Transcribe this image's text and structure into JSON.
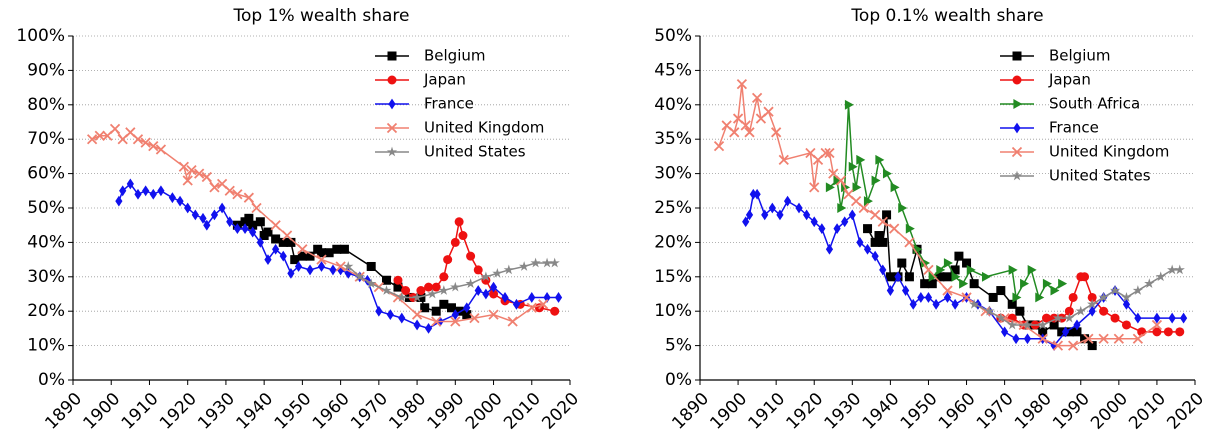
{
  "chart_data": [
    {
      "type": "line",
      "title": "Top 1% wealth share",
      "legend": "upper right",
      "grid": true,
      "xlim": [
        1890,
        2020
      ],
      "xticks": [
        1890,
        1900,
        1910,
        1920,
        1930,
        1940,
        1950,
        1960,
        1970,
        1980,
        1990,
        2000,
        2010,
        2020
      ],
      "ylim": [
        0,
        100
      ],
      "yticks": [
        {
          "value": 0,
          "label": "0%"
        },
        {
          "value": 10,
          "label": "10%"
        },
        {
          "value": 20,
          "label": "20%"
        },
        {
          "value": 30,
          "label": "30%"
        },
        {
          "value": 40,
          "label": "40%"
        },
        {
          "value": 50,
          "label": "50%"
        },
        {
          "value": 60,
          "label": "60%"
        },
        {
          "value": 70,
          "label": "70%"
        },
        {
          "value": 80,
          "label": "80%"
        },
        {
          "value": 90,
          "label": "90%"
        },
        {
          "value": 100,
          "label": "100%"
        }
      ],
      "series": [
        {
          "name": "Belgium",
          "color": "#000000",
          "marker": "square",
          "x": [
            1933,
            1935,
            1936,
            1937,
            1939,
            1940,
            1941,
            1943,
            1945,
            1947,
            1948,
            1950,
            1952,
            1954,
            1955,
            1957,
            1959,
            1961,
            1968,
            1972,
            1975,
            1978,
            1981,
            1982,
            1985,
            1987,
            1989,
            1991,
            1993
          ],
          "values": [
            45,
            46,
            47,
            45,
            46,
            42,
            43,
            41,
            40,
            40,
            35,
            36,
            36,
            38,
            37,
            37,
            38,
            38,
            33,
            29,
            27,
            24,
            24,
            21,
            20,
            22,
            21,
            20,
            19
          ]
        },
        {
          "name": "Japan",
          "color": "#ee1111",
          "marker": "circle",
          "x": [
            1975,
            1977,
            1979,
            1981,
            1983,
            1985,
            1987,
            1988,
            1990,
            1991,
            1992,
            1994,
            1996,
            1998,
            2000,
            2003,
            2007,
            2012,
            2016
          ],
          "values": [
            29,
            26,
            24,
            26,
            27,
            27,
            30,
            35,
            40,
            46,
            42,
            36,
            32,
            29,
            25,
            23,
            22,
            21,
            20
          ]
        },
        {
          "name": "France",
          "color": "#1111ee",
          "marker": "diamond",
          "x": [
            1902,
            1903,
            1905,
            1907,
            1909,
            1911,
            1913,
            1916,
            1918,
            1920,
            1922,
            1924,
            1925,
            1927,
            1929,
            1931,
            1933,
            1935,
            1937,
            1939,
            1941,
            1943,
            1945,
            1947,
            1949,
            1952,
            1955,
            1958,
            1960,
            1962,
            1965,
            1967,
            1970,
            1973,
            1976,
            1980,
            1983,
            1986,
            1990,
            1993,
            1996,
            1998,
            2000,
            2003,
            2006,
            2010,
            2014,
            2017
          ],
          "values": [
            52,
            55,
            57,
            54,
            55,
            54,
            55,
            53,
            52,
            50,
            48,
            47,
            45,
            48,
            50,
            46,
            44,
            44,
            43,
            40,
            35,
            38,
            36,
            31,
            33,
            32,
            33,
            32,
            32,
            31,
            30,
            29,
            20,
            19,
            18,
            16,
            15,
            17,
            19,
            21,
            26,
            25,
            27,
            24,
            22,
            24,
            24,
            24
          ]
        },
        {
          "name": "United Kingdom",
          "color": "#f08070",
          "marker": "x",
          "x": [
            1895,
            1897,
            1899,
            1901,
            1903,
            1905,
            1907,
            1909,
            1911,
            1913,
            1919,
            1920,
            1921,
            1923,
            1925,
            1927,
            1929,
            1931,
            1933,
            1936,
            1938,
            1943,
            1946,
            1950,
            1955,
            1960,
            1965,
            1970,
            1975,
            1980,
            1985,
            1990,
            1995,
            2000,
            2005,
            2010,
            2013
          ],
          "values": [
            70,
            71,
            71,
            73,
            70,
            72,
            70,
            69,
            68,
            67,
            62,
            58,
            61,
            60,
            59,
            56,
            57,
            55,
            54,
            53,
            50,
            45,
            42,
            38,
            35,
            33,
            30,
            27,
            24,
            19,
            17,
            17,
            18,
            19,
            17,
            21,
            22
          ]
        },
        {
          "name": "United States",
          "color": "#888888",
          "marker": "star",
          "x": [
            1962,
            1965,
            1968,
            1972,
            1976,
            1980,
            1984,
            1987,
            1990,
            1994,
            1998,
            2001,
            2004,
            2008,
            2011,
            2014,
            2016
          ],
          "values": [
            33,
            30,
            28,
            26,
            24,
            24,
            25,
            26,
            27,
            28,
            30,
            31,
            32,
            33,
            34,
            34,
            34
          ]
        }
      ]
    },
    {
      "type": "line",
      "title": "Top 0.1% wealth share",
      "legend": "upper right",
      "grid": true,
      "xlim": [
        1890,
        2020
      ],
      "xticks": [
        1890,
        1900,
        1910,
        1920,
        1930,
        1940,
        1950,
        1960,
        1970,
        1980,
        1990,
        2000,
        2010,
        2020
      ],
      "ylim": [
        0,
        50
      ],
      "yticks": [
        {
          "value": 0,
          "label": "0%"
        },
        {
          "value": 5,
          "label": "5%"
        },
        {
          "value": 10,
          "label": "10%"
        },
        {
          "value": 15,
          "label": "15%"
        },
        {
          "value": 20,
          "label": "20%"
        },
        {
          "value": 25,
          "label": "25%"
        },
        {
          "value": 30,
          "label": "30%"
        },
        {
          "value": 35,
          "label": "35%"
        },
        {
          "value": 40,
          "label": "40%"
        },
        {
          "value": 45,
          "label": "45%"
        },
        {
          "value": 50,
          "label": "50%"
        }
      ],
      "series": [
        {
          "name": "Belgium",
          "color": "#000000",
          "marker": "square",
          "x": [
            1934,
            1936,
            1937,
            1938,
            1939,
            1940,
            1942,
            1943,
            1945,
            1947,
            1949,
            1951,
            1953,
            1955,
            1957,
            1958,
            1960,
            1962,
            1967,
            1969,
            1972,
            1974,
            1976,
            1978,
            1980,
            1983,
            1985,
            1987,
            1989,
            1991,
            1993
          ],
          "values": [
            22,
            20,
            21,
            20,
            24,
            15,
            15,
            17,
            15,
            19,
            14,
            14,
            15,
            15,
            16,
            18,
            17,
            14,
            12,
            13,
            11,
            10,
            8,
            8,
            7,
            8,
            7,
            7,
            7,
            6,
            5
          ]
        },
        {
          "name": "Japan",
          "color": "#ee1111",
          "marker": "circle",
          "x": [
            1969,
            1972,
            1975,
            1978,
            1981,
            1983,
            1985,
            1987,
            1988,
            1990,
            1991,
            1993,
            1996,
            1999,
            2002,
            2006,
            2010,
            2013,
            2016
          ],
          "values": [
            9,
            9,
            8,
            8,
            9,
            9,
            9,
            10,
            12,
            15,
            15,
            12,
            10,
            9,
            8,
            7,
            7,
            7,
            7
          ]
        },
        {
          "name": "South Africa",
          "color": "#228b22",
          "marker": "triangle",
          "x": [
            1924,
            1926,
            1927,
            1928,
            1929,
            1930,
            1931,
            1932,
            1934,
            1936,
            1937,
            1939,
            1941,
            1943,
            1945,
            1947,
            1949,
            1951,
            1953,
            1955,
            1957,
            1959,
            1961,
            1965,
            1972,
            1973,
            1975,
            1977,
            1979,
            1981,
            1983,
            1985
          ],
          "values": [
            28,
            29,
            25,
            28,
            40,
            31,
            28,
            32,
            26,
            29,
            32,
            30,
            28,
            25,
            22,
            19,
            17,
            15,
            16,
            17,
            15,
            14,
            16,
            15,
            16,
            12,
            14,
            16,
            12,
            14,
            13,
            14
          ]
        },
        {
          "name": "France",
          "color": "#1111ee",
          "marker": "diamond",
          "x": [
            1902,
            1903,
            1904,
            1905,
            1907,
            1909,
            1911,
            1913,
            1916,
            1918,
            1920,
            1922,
            1924,
            1926,
            1928,
            1930,
            1932,
            1934,
            1936,
            1938,
            1940,
            1942,
            1944,
            1946,
            1948,
            1950,
            1952,
            1955,
            1957,
            1960,
            1963,
            1966,
            1970,
            1973,
            1976,
            1980,
            1983,
            1986,
            1989,
            1993,
            1996,
            1999,
            2002,
            2005,
            2010,
            2014,
            2017
          ],
          "values": [
            23,
            24,
            27,
            27,
            24,
            25,
            24,
            26,
            25,
            24,
            23,
            22,
            19,
            22,
            23,
            24,
            20,
            19,
            18,
            16,
            13,
            15,
            13,
            11,
            12,
            12,
            11,
            12,
            11,
            12,
            11,
            10,
            7,
            6,
            6,
            6,
            5,
            7,
            8,
            10,
            12,
            13,
            11,
            9,
            9,
            9,
            9
          ]
        },
        {
          "name": "United Kingdom",
          "color": "#f08070",
          "marker": "x",
          "x": [
            1895,
            1897,
            1899,
            1900,
            1901,
            1902,
            1903,
            1905,
            1906,
            1908,
            1910,
            1912,
            1919,
            1920,
            1921,
            1923,
            1924,
            1925,
            1927,
            1929,
            1931,
            1933,
            1936,
            1938,
            1941,
            1945,
            1950,
            1955,
            1960,
            1965,
            1970,
            1975,
            1980,
            1984,
            1988,
            1992,
            1996,
            2000,
            2005,
            2010
          ],
          "values": [
            34,
            37,
            36,
            38,
            43,
            37,
            36,
            41,
            38,
            39,
            36,
            32,
            33,
            28,
            32,
            33,
            33,
            30,
            29,
            27,
            26,
            25,
            24,
            23,
            22,
            20,
            16,
            13,
            12,
            10,
            9,
            8,
            6,
            5,
            5,
            6,
            6,
            6,
            6,
            8
          ]
        },
        {
          "name": "United States",
          "color": "#888888",
          "marker": "star",
          "x": [
            1962,
            1966,
            1969,
            1972,
            1976,
            1980,
            1984,
            1987,
            1990,
            1993,
            1996,
            1999,
            2002,
            2005,
            2008,
            2011,
            2014,
            2016
          ],
          "values": [
            11,
            10,
            9,
            8,
            8,
            8,
            9,
            9,
            10,
            11,
            12,
            13,
            12,
            13,
            14,
            15,
            16,
            16
          ]
        }
      ]
    }
  ]
}
